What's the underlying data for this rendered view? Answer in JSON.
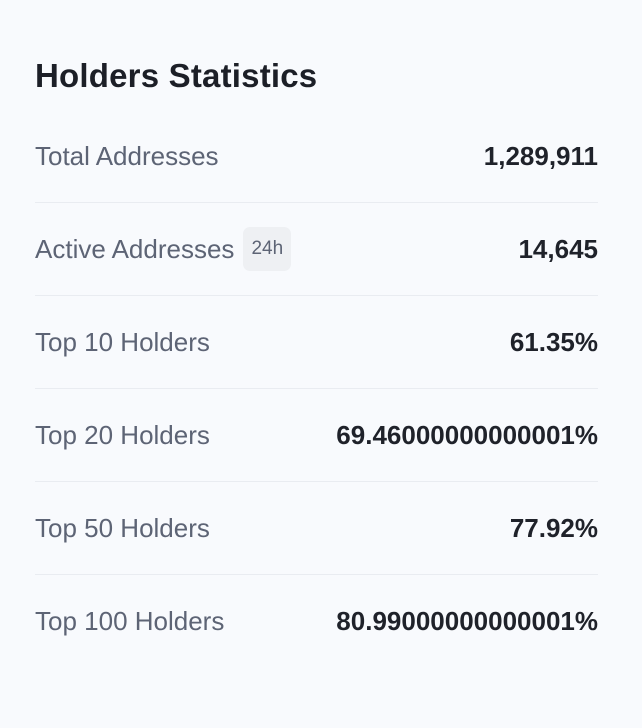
{
  "title": "Holders Statistics",
  "rows": [
    {
      "label": "Total Addresses",
      "value": "1,289,911"
    },
    {
      "label": "Active Addresses",
      "badge": "24h",
      "value": "14,645"
    },
    {
      "label": "Top 10 Holders",
      "value": "61.35%"
    },
    {
      "label": "Top 20 Holders",
      "value": "69.46000000000001%"
    },
    {
      "label": "Top 50 Holders",
      "value": "77.92%"
    },
    {
      "label": "Top 100 Holders",
      "value": "80.99000000000001%"
    }
  ]
}
